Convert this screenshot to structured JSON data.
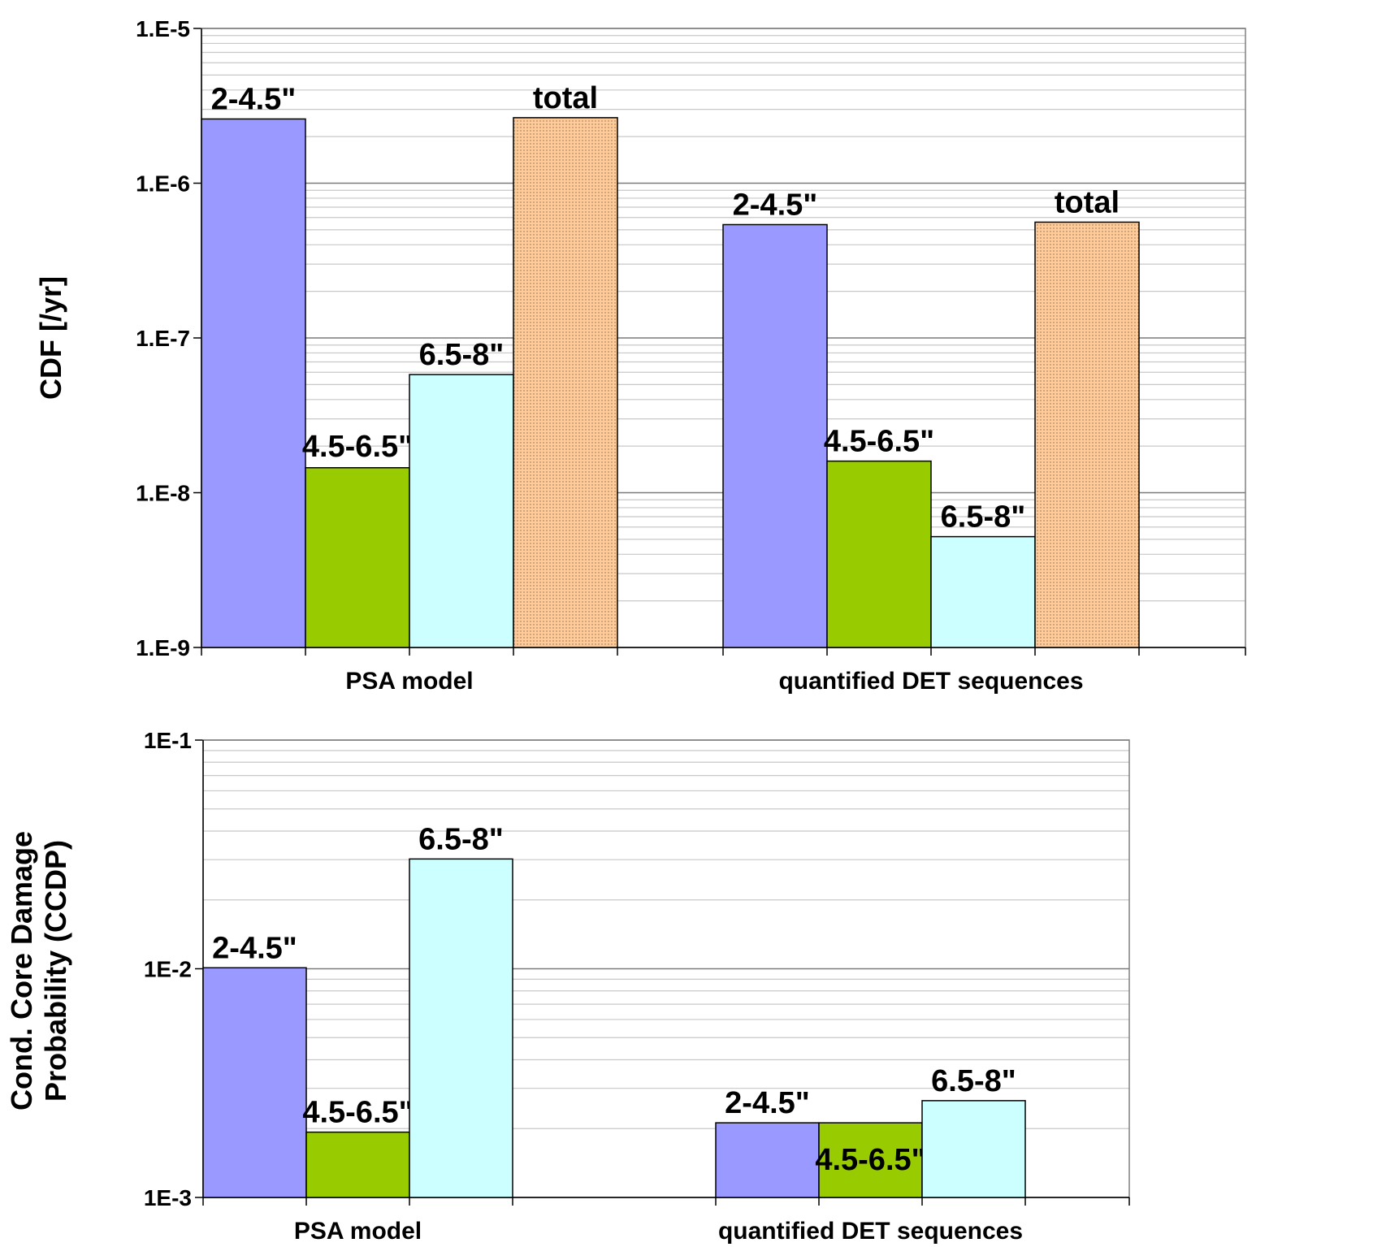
{
  "chart_data": [
    {
      "type": "bar",
      "yscale": "log",
      "title": "",
      "xlabel": "",
      "ylabel": "CDF [/yr]",
      "ylim": [
        1e-09,
        1e-05
      ],
      "yticks": [
        {
          "value": 1e-05,
          "label": "1.E-5"
        },
        {
          "value": 1e-06,
          "label": "1.E-6"
        },
        {
          "value": 1e-07,
          "label": "1.E-7"
        },
        {
          "value": 1e-08,
          "label": "1.E-8"
        },
        {
          "value": 1e-09,
          "label": "1.E-9"
        }
      ],
      "categories": [
        "PSA model",
        "quantified DET sequences"
      ],
      "series": [
        {
          "name": "2-4.5\"",
          "color": "#9999FF",
          "pattern": "none",
          "values": [
            2.6e-06,
            5.4e-07
          ]
        },
        {
          "name": "4.5-6.5\"",
          "color": "#99CC00",
          "pattern": "none",
          "values": [
            1.45e-08,
            1.6e-08
          ]
        },
        {
          "name": "6.5-8\"",
          "color": "#CCFFFF",
          "pattern": "none",
          "values": [
            5.8e-08,
            5.2e-09
          ]
        },
        {
          "name": "total",
          "color": "#FFCC99",
          "pattern": "dots",
          "values": [
            2.65e-06,
            5.6e-07
          ]
        }
      ]
    },
    {
      "type": "bar",
      "yscale": "log",
      "title": "",
      "xlabel": "",
      "ylabel": "Cond. Core Damage Probability (CCDP)",
      "ylabel_lines": [
        "Cond. Core Damage",
        "Probability (CCDP)"
      ],
      "ylim": [
        0.001,
        0.1
      ],
      "yticks": [
        {
          "value": 0.1,
          "label": "1E-1"
        },
        {
          "value": 0.01,
          "label": "1E-2"
        },
        {
          "value": 0.001,
          "label": "1E-3"
        }
      ],
      "categories": [
        "PSA model",
        "quantified DET sequences"
      ],
      "series": [
        {
          "name": "2-4.5\"",
          "color": "#9999FF",
          "pattern": "none",
          "values": [
            0.0101,
            0.00212
          ]
        },
        {
          "name": "4.5-6.5\"",
          "color": "#99CC00",
          "pattern": "none",
          "values": [
            0.00193,
            0.00212
          ]
        },
        {
          "name": "6.5-8\"",
          "color": "#CCFFFF",
          "pattern": "none",
          "values": [
            0.0302,
            0.00265
          ]
        }
      ]
    }
  ]
}
